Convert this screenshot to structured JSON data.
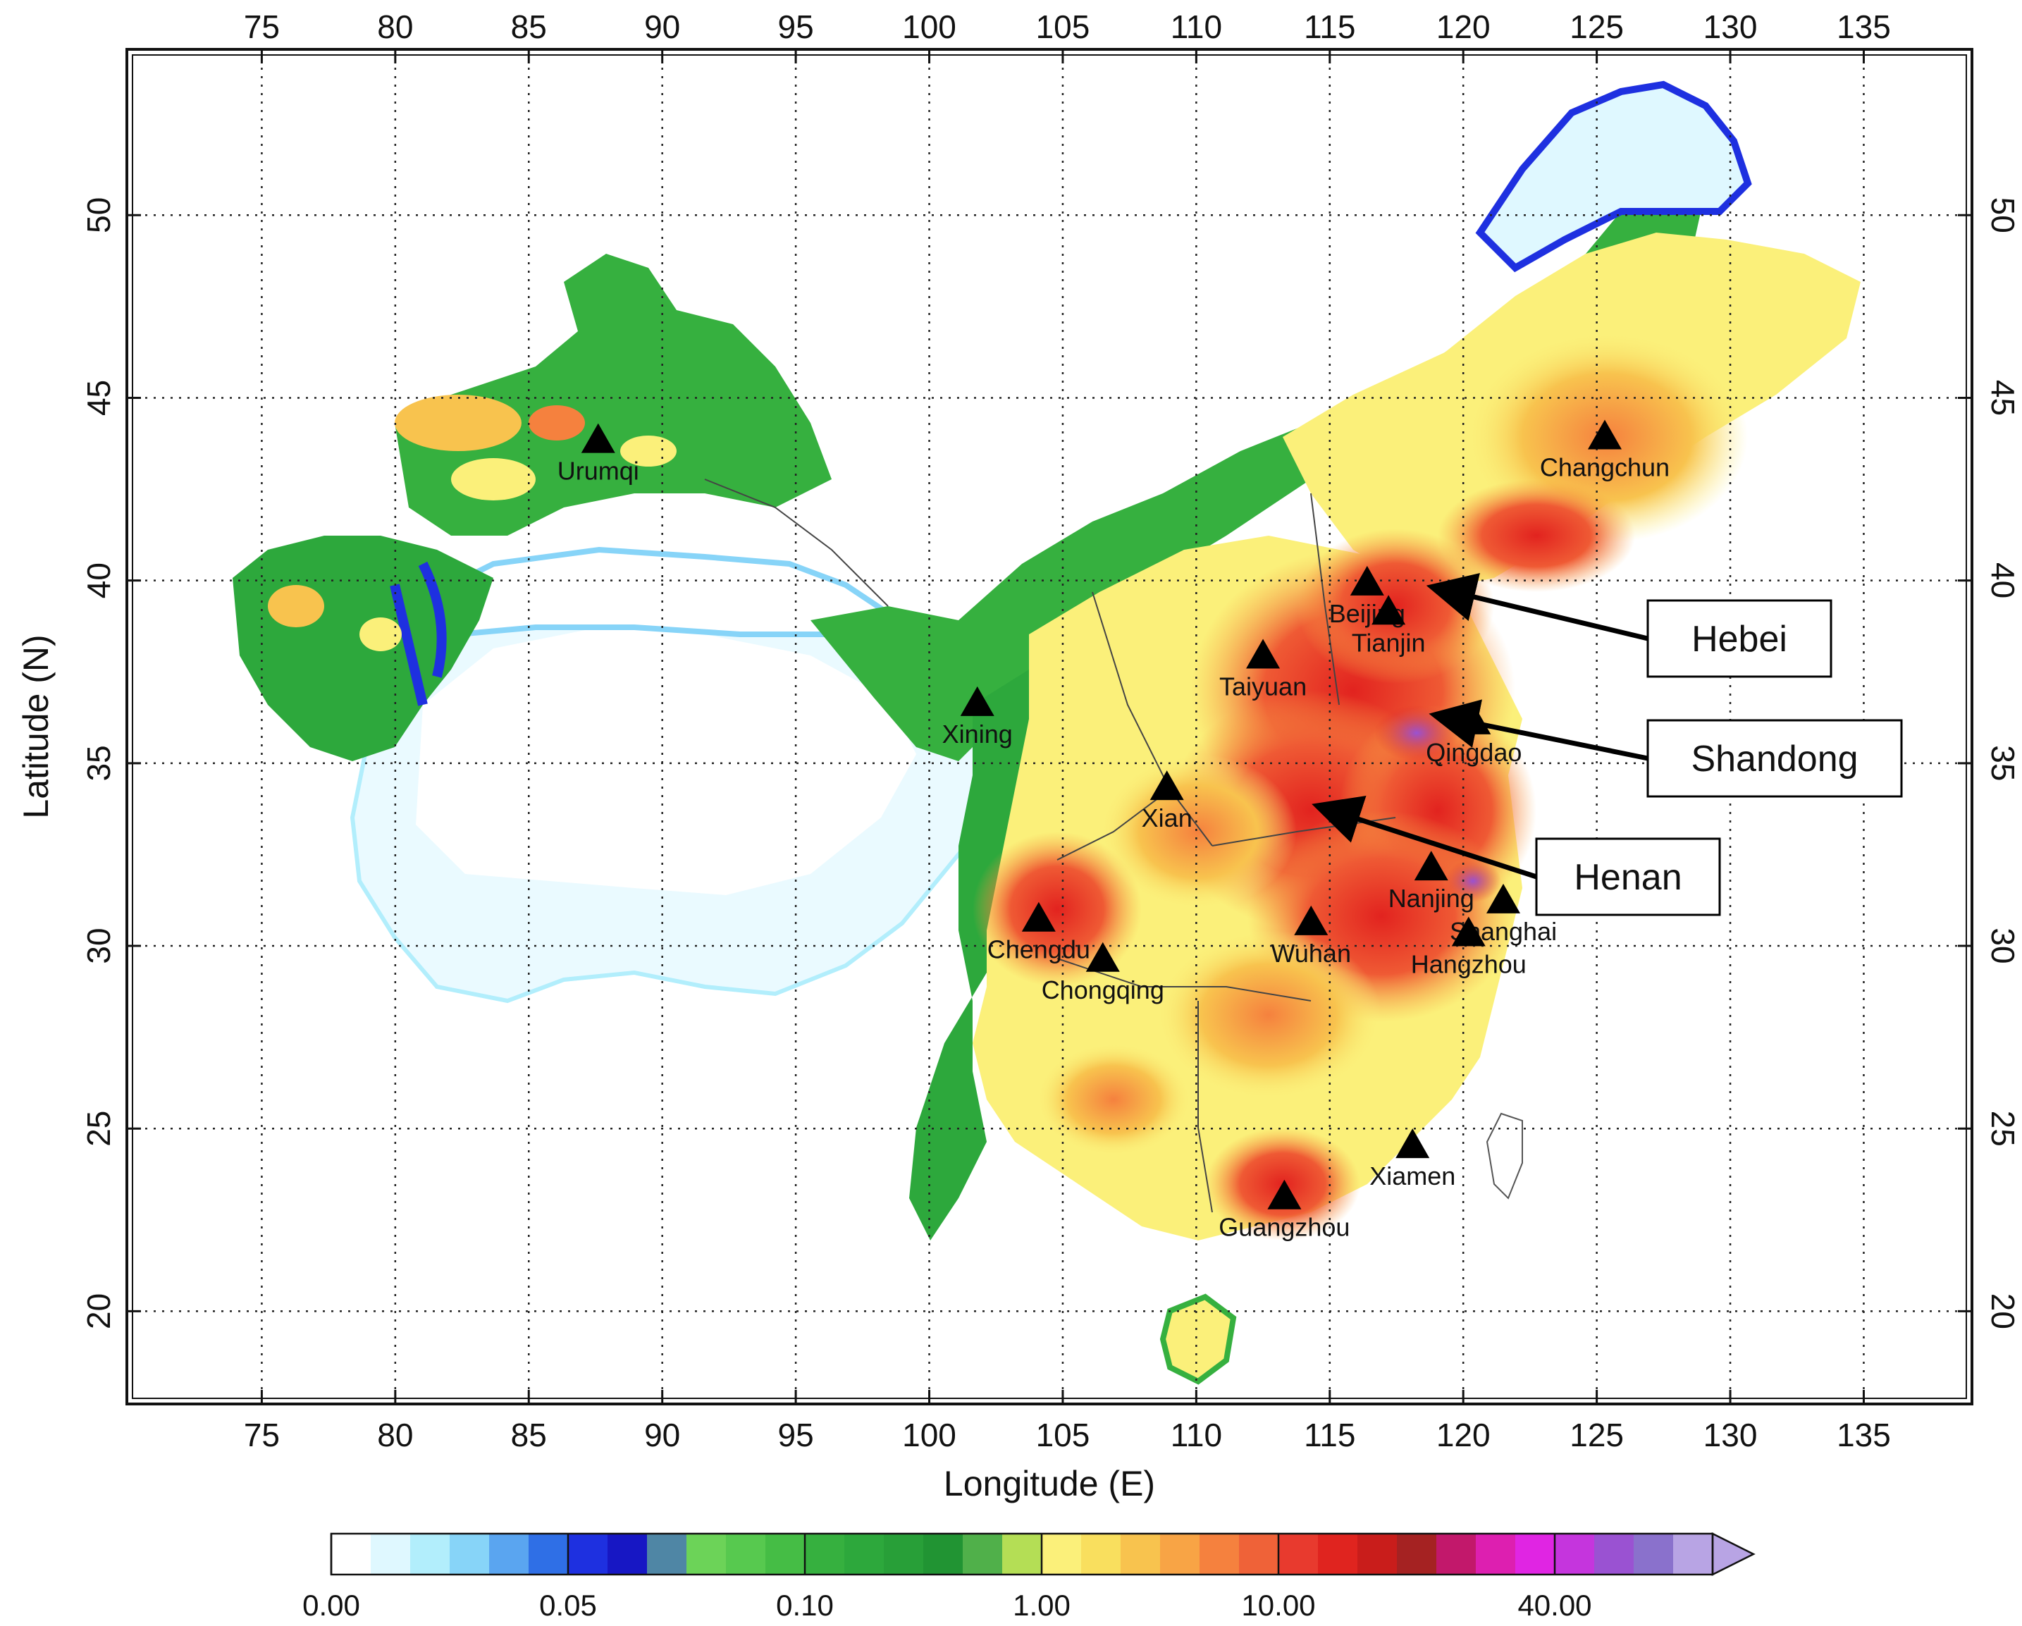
{
  "map": {
    "x_axis_title": "Longitude (E)",
    "y_axis_title": "Latitude (N)",
    "lon_ticks": [
      "75",
      "80",
      "85",
      "90",
      "95",
      "100",
      "105",
      "110",
      "115",
      "120",
      "125",
      "130",
      "135"
    ],
    "lat_ticks": [
      "20",
      "25",
      "30",
      "35",
      "40",
      "45",
      "50"
    ],
    "lon_range": [
      70,
      139
    ],
    "lat_range": [
      17.5,
      54.5
    ],
    "grid": true,
    "grid_style": "dotted",
    "cities": [
      {
        "name": "Urumqi",
        "lon": 87.6,
        "lat": 43.8
      },
      {
        "name": "Changchun",
        "lon": 125.3,
        "lat": 43.9
      },
      {
        "name": "Beijing",
        "lon": 116.4,
        "lat": 39.9
      },
      {
        "name": "Tianjin",
        "lon": 117.2,
        "lat": 39.1
      },
      {
        "name": "Taiyuan",
        "lon": 112.5,
        "lat": 37.9
      },
      {
        "name": "Xining",
        "lon": 101.8,
        "lat": 36.6
      },
      {
        "name": "Qingdao",
        "lon": 120.4,
        "lat": 36.1
      },
      {
        "name": "Xian",
        "lon": 108.9,
        "lat": 34.3
      },
      {
        "name": "Nanjing",
        "lon": 118.8,
        "lat": 32.1
      },
      {
        "name": "Shanghai",
        "lon": 121.5,
        "lat": 31.2
      },
      {
        "name": "Chengdu",
        "lon": 104.1,
        "lat": 30.7
      },
      {
        "name": "Wuhan",
        "lon": 114.3,
        "lat": 30.6
      },
      {
        "name": "Hangzhou",
        "lon": 120.2,
        "lat": 30.3
      },
      {
        "name": "Chongqing",
        "lon": 106.5,
        "lat": 29.6
      },
      {
        "name": "Xiamen",
        "lon": 118.1,
        "lat": 24.5
      },
      {
        "name": "Guangzhou",
        "lon": 113.3,
        "lat": 23.1
      }
    ],
    "callouts": [
      {
        "label": "Hebei",
        "target_lon": 118.5,
        "target_lat": 39.8
      },
      {
        "label": "Shandong",
        "target_lon": 118.6,
        "target_lat": 36.3
      },
      {
        "label": "Henan",
        "target_lon": 114.2,
        "target_lat": 33.8
      }
    ]
  },
  "colorbar": {
    "colors": [
      "#ffffff",
      "#dff8ff",
      "#b2eefc",
      "#87d4f8",
      "#5aa5f0",
      "#2f6fe6",
      "#1e30e0",
      "#1717c4",
      "#4f86a5",
      "#6cd358",
      "#57c94f",
      "#45bd45",
      "#36b03f",
      "#2da83c",
      "#289f38",
      "#219433",
      "#50b04a",
      "#b4de55",
      "#fbf07a",
      "#f9df5e",
      "#f8c34e",
      "#f8a445",
      "#f5813e",
      "#ef6238",
      "#e83a2e",
      "#e0241f",
      "#c91d1b",
      "#a52222",
      "#c2186b",
      "#dd1fb0",
      "#e025e3",
      "#c535dd",
      "#9a52d2",
      "#8a71cc",
      "#b8a4e4"
    ],
    "labels": [
      "0.00",
      "0.05",
      "0.10",
      "1.00",
      "10.00",
      "40.00"
    ]
  }
}
